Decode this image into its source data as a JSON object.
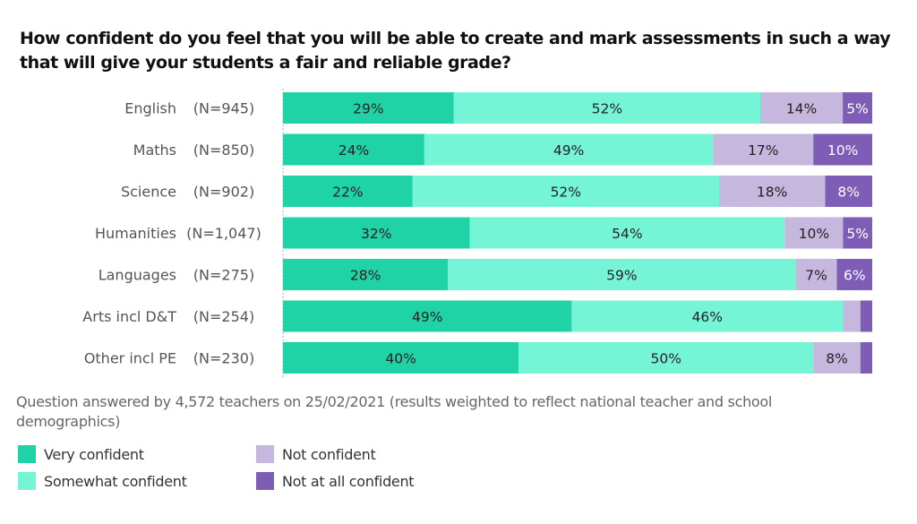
{
  "title_lines": [
    "How confident do you feel that you will be able to create and mark assessments in such a way",
    "that will give your students a fair and reliable grade?"
  ],
  "note": "Question answered by 4,572 teachers on 25/02/2021 (results weighted to reflect national teacher and school demographics)",
  "colors": {
    "very": "#20D3A6",
    "somewhat": "#75F5D6",
    "not": "#C5B7DE",
    "not_at_all": "#7E5DB6"
  },
  "legend": [
    {
      "label": "Very confident",
      "color": "#20D3A6"
    },
    {
      "label": "Somewhat confident",
      "color": "#75F5D6"
    },
    {
      "label": "Not confident",
      "color": "#C5B7DE"
    },
    {
      "label": "Not at all confident",
      "color": "#7E5DB6"
    }
  ],
  "chart_data": {
    "type": "bar",
    "orientation": "horizontal",
    "stacked": true,
    "title": "How confident do you feel that you will be able to create and mark assessments in such a way that will give your students a fair and reliable grade?",
    "categories": [
      "English",
      "Maths",
      "Science",
      "Humanities",
      "Languages",
      "Arts incl D&T",
      "Other incl PE"
    ],
    "sample_sizes": [
      "(N=945)",
      "(N=850)",
      "(N=902)",
      "(N=1,047)",
      "(N=275)",
      "(N=254)",
      "(N=230)"
    ],
    "series": [
      {
        "name": "Very confident",
        "values": [
          29,
          24,
          22,
          32,
          28,
          49,
          40
        ],
        "labels": [
          "29%",
          "24%",
          "22%",
          "32%",
          "28%",
          "49%",
          "40%"
        ]
      },
      {
        "name": "Somewhat confident",
        "values": [
          52,
          49,
          52,
          54,
          59,
          46,
          50
        ],
        "labels": [
          "52%",
          "49%",
          "52%",
          "54%",
          "59%",
          "46%",
          "50%"
        ]
      },
      {
        "name": "Not confident",
        "values": [
          14,
          17,
          18,
          10,
          7,
          3,
          8
        ],
        "labels": [
          "14%",
          "17%",
          "18%",
          "10%",
          "7%",
          "",
          "8%"
        ]
      },
      {
        "name": "Not at all confident",
        "values": [
          5,
          10,
          8,
          5,
          6,
          2,
          2
        ],
        "labels": [
          "5%",
          "10%",
          "8%",
          "5%",
          "6%",
          "",
          ""
        ]
      }
    ],
    "xlim": [
      0,
      100
    ],
    "unit": "%",
    "grid": false,
    "legend_position": "bottom-left"
  }
}
